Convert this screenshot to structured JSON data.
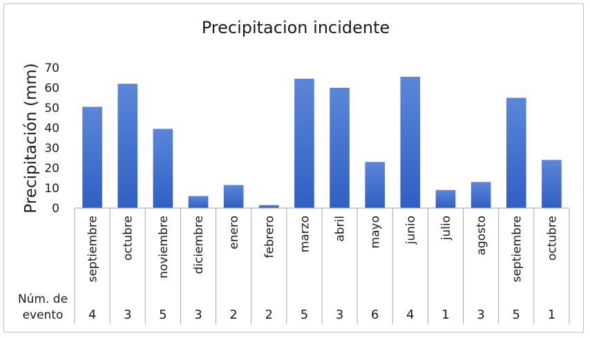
{
  "chart_data": {
    "type": "bar",
    "title": "Precipitacion incidente",
    "xlabel": "",
    "ylabel": "Precipitación (mm)",
    "ylim": [
      0,
      70
    ],
    "yticks": [
      0,
      10,
      20,
      30,
      40,
      50,
      60,
      70
    ],
    "grid": false,
    "bar_color": "#3f6fd0",
    "categories": [
      "septiembre",
      "octubre",
      "noviembre",
      "diciembre",
      "enero",
      "febrero",
      "marzo",
      "abril",
      "mayo",
      "junio",
      "julio",
      "agosto",
      "septiembre",
      "octubre"
    ],
    "values": [
      50.5,
      62,
      39.5,
      6,
      11.5,
      1.5,
      64.5,
      60,
      23,
      65.5,
      9,
      13,
      55,
      24
    ],
    "event_row_label_line1": "Núm. de",
    "event_row_label_line2": "evento",
    "event_counts": [
      "4",
      "3",
      "5",
      "3",
      "2",
      "2",
      "5",
      "3",
      "6",
      "4",
      "1",
      "3",
      "5",
      "1"
    ]
  }
}
